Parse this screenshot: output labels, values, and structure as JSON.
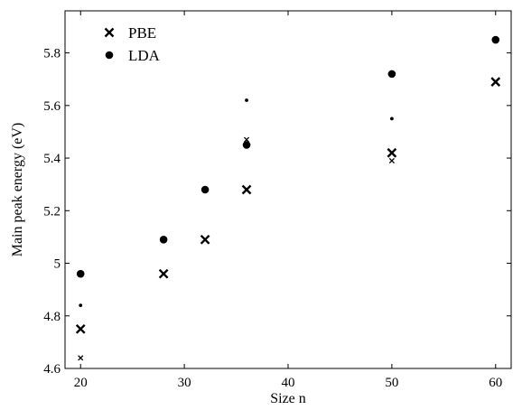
{
  "chart_data": {
    "type": "scatter",
    "title": "",
    "xlabel": "Size n",
    "ylabel": "Main peak energy (eV)",
    "xlim": [
      18.5,
      61.5
    ],
    "ylim": [
      4.6,
      5.96
    ],
    "xticks": [
      20,
      30,
      40,
      50,
      60
    ],
    "xtick_labels": [
      "20",
      "30",
      "40",
      "50",
      "60"
    ],
    "yticks": [
      4.6,
      4.8,
      5.0,
      5.2,
      5.4,
      5.6,
      5.8
    ],
    "ytick_labels": [
      "4.6",
      "4.8",
      "5",
      "5.2",
      "5.4",
      "5.6",
      "5.8"
    ],
    "grid": false,
    "legend_position": "top-left",
    "series": [
      {
        "name": "PBE",
        "marker": "x",
        "color": "#000000",
        "points": [
          {
            "x": 20,
            "y": 4.75
          },
          {
            "x": 28,
            "y": 4.96
          },
          {
            "x": 32,
            "y": 5.09
          },
          {
            "x": 36,
            "y": 5.28
          },
          {
            "x": 50,
            "y": 5.42
          },
          {
            "x": 60,
            "y": 5.69
          }
        ]
      },
      {
        "name": "LDA",
        "marker": "circle",
        "color": "#000000",
        "points": [
          {
            "x": 20,
            "y": 4.96
          },
          {
            "x": 28,
            "y": 5.09
          },
          {
            "x": 32,
            "y": 5.28
          },
          {
            "x": 36,
            "y": 5.45
          },
          {
            "x": 50,
            "y": 5.72
          },
          {
            "x": 60,
            "y": 5.85
          }
        ]
      },
      {
        "marker": "x-small",
        "color": "#000000",
        "points": [
          {
            "x": 20,
            "y": 4.64
          },
          {
            "x": 36,
            "y": 5.47
          },
          {
            "x": 50,
            "y": 5.39
          }
        ]
      },
      {
        "marker": "dot-small",
        "color": "#000000",
        "points": [
          {
            "x": 20,
            "y": 4.84
          },
          {
            "x": 36,
            "y": 5.62
          },
          {
            "x": 50,
            "y": 5.55
          }
        ]
      }
    ]
  }
}
